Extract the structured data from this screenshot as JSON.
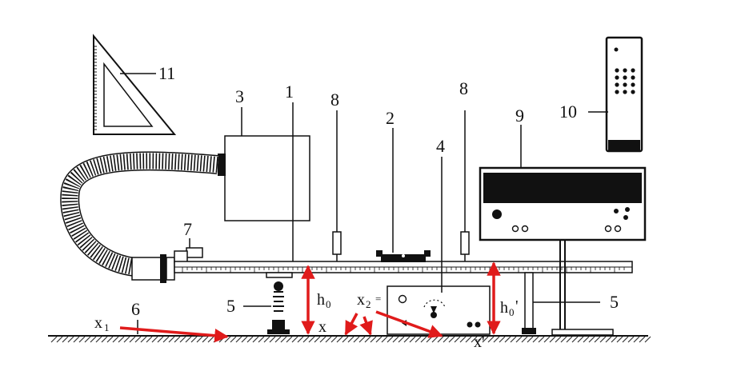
{
  "labels": {
    "n1": "1",
    "n2": "2",
    "n3": "3",
    "n4": "4",
    "n5_left": "5",
    "n5_right": "5",
    "n6": "6",
    "n7": "7",
    "n8_left": "8",
    "n8_right": "8",
    "n9": "9",
    "n10": "10",
    "n11": "11"
  },
  "symbols": {
    "h0": "h",
    "h0_sub": "0",
    "h0p": "h",
    "h0p_sub": "0",
    "h0p_prime": "'",
    "x": "x",
    "xp": "x'",
    "x1": "x",
    "x1_sub": "1",
    "x2": "x",
    "x2_sub": "2",
    "x2_eq": "="
  },
  "colors": {
    "line": "#111111",
    "arrow": "#e01b1b",
    "ground_hatch": "#333333"
  }
}
